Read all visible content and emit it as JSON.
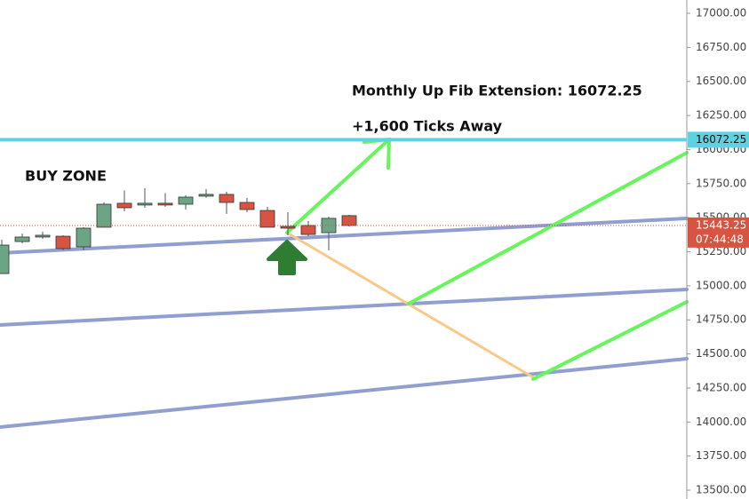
{
  "chart_data": {
    "type": "candlestick",
    "series": [
      {
        "name": null,
        "up_color": "#6ba583",
        "down_color": "#d75442",
        "open": [
          15090,
          15325,
          15358,
          15364,
          15286,
          15430,
          15606,
          15593,
          15606,
          15599,
          15658,
          15671,
          15612,
          15553,
          15436,
          15443,
          15390,
          15515
        ],
        "high": [
          15338,
          15384,
          15397,
          15371,
          15430,
          15613,
          15700,
          15717,
          15680,
          15664,
          15710,
          15690,
          15645,
          15580,
          15540,
          15475,
          15508,
          15521
        ],
        "low": [
          15090,
          15312,
          15345,
          15260,
          15260,
          15430,
          15547,
          15573,
          15580,
          15560,
          15645,
          15528,
          15540,
          15430,
          15371,
          15364,
          15260,
          15436
        ],
        "close": [
          15299,
          15358,
          15371,
          15273,
          15423,
          15599,
          15573,
          15606,
          15593,
          15651,
          15671,
          15612,
          15560,
          15430,
          15423,
          15377,
          15495,
          15443
        ]
      }
    ],
    "ylim": [
      13435,
      17098
    ],
    "yticks": [
      {
        "value": 17000,
        "label": "17000.00"
      },
      {
        "value": 16750,
        "label": "16750.00"
      },
      {
        "value": 16500,
        "label": "16500.00"
      },
      {
        "value": 16250,
        "label": "16250.00"
      },
      {
        "value": 16000,
        "label": "16000.00"
      },
      {
        "value": 15750,
        "label": "15750.00"
      },
      {
        "value": 15500,
        "label": "15500.00"
      },
      {
        "value": 15250,
        "label": "15250.00"
      },
      {
        "value": 15000,
        "label": "15000.00"
      },
      {
        "value": 14750,
        "label": "14750.00"
      },
      {
        "value": 14500,
        "label": "14500.00"
      },
      {
        "value": 14250,
        "label": "14250.00"
      },
      {
        "value": 14000,
        "label": "14000.00"
      },
      {
        "value": 13750,
        "label": "13750.00"
      },
      {
        "value": 13500,
        "label": "13500.00"
      }
    ],
    "fib_level": 16072.25,
    "fib_color": "#5cd3e0",
    "last_price": 15443.25,
    "countdown": "07:44:48",
    "annotations": [
      "Monthly Up Fib Extension: 16072.25",
      "+1,600 Ticks Away",
      "BUY ZONE"
    ]
  }
}
